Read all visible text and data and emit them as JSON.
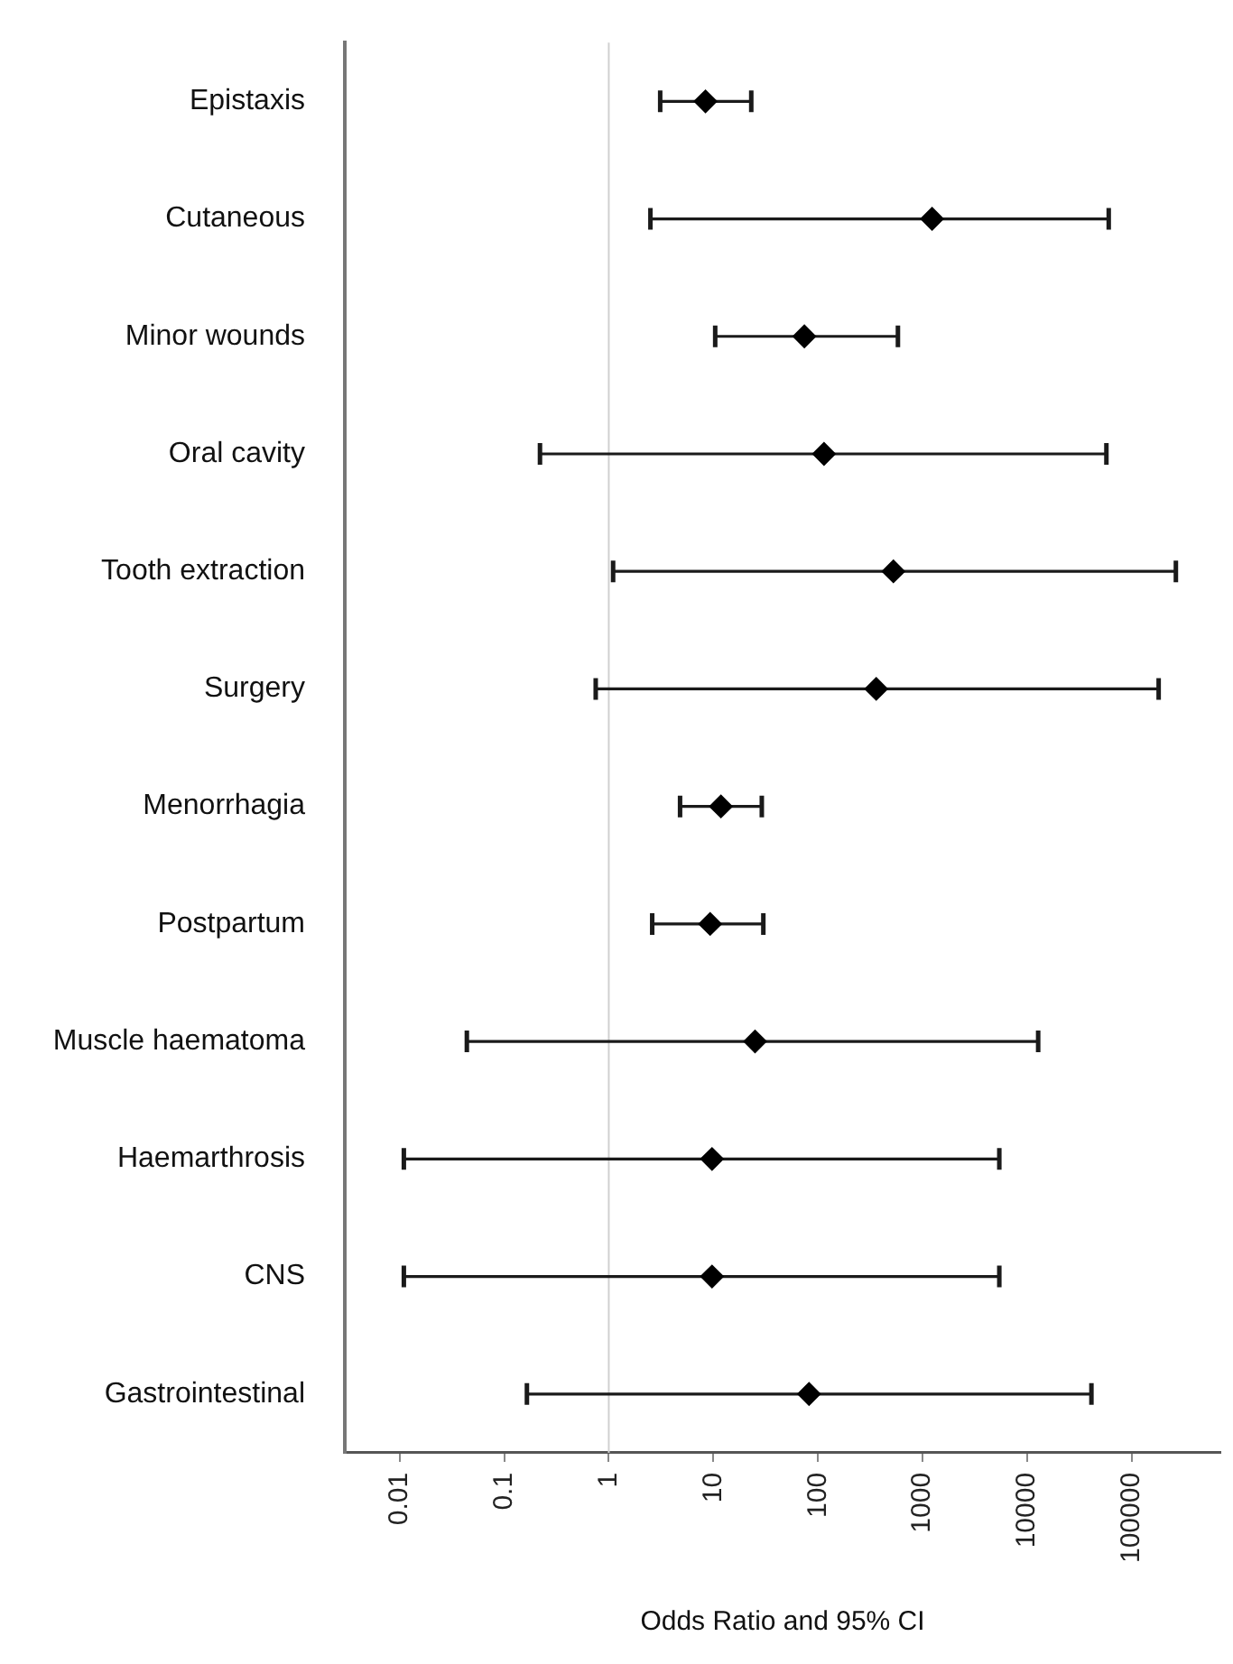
{
  "chart_data": {
    "type": "scatter",
    "orientation": "horizontal",
    "xlabel": "Odds Ratio and 95% CI",
    "categories": [
      "Epistaxis",
      "Cutaneous",
      "Minor wounds",
      "Oral cavity",
      "Tooth extraction",
      "Surgery",
      "Menorrhagia",
      "Postpartum",
      "Muscle haematoma",
      "Haemarthrosis",
      "CNS",
      "Gastrointestinal"
    ],
    "values": [
      8.4,
      1230,
      74,
      114,
      525,
      360,
      11.8,
      9.3,
      25,
      9.7,
      9.7,
      82
    ],
    "errors": [
      [
        3.1,
        23
      ],
      [
        2.5,
        60000
      ],
      [
        10.4,
        580
      ],
      [
        0.22,
        57000
      ],
      [
        1.1,
        263000
      ],
      [
        0.75,
        180000
      ],
      [
        4.8,
        29
      ],
      [
        2.6,
        30
      ],
      [
        0.044,
        12700
      ],
      [
        0.011,
        5400
      ],
      [
        0.011,
        5400
      ],
      [
        0.165,
        41000
      ]
    ],
    "color": "#000000",
    "marker": "diamond",
    "log": "x",
    "xlim": [
      0.003,
      700000
    ],
    "xticks": [
      0.01,
      0.1,
      1,
      10,
      100,
      1000,
      10000,
      100000
    ],
    "ref_lines": [
      {
        "axis": "x",
        "value": 1,
        "color": "#d0d0d0"
      }
    ]
  }
}
